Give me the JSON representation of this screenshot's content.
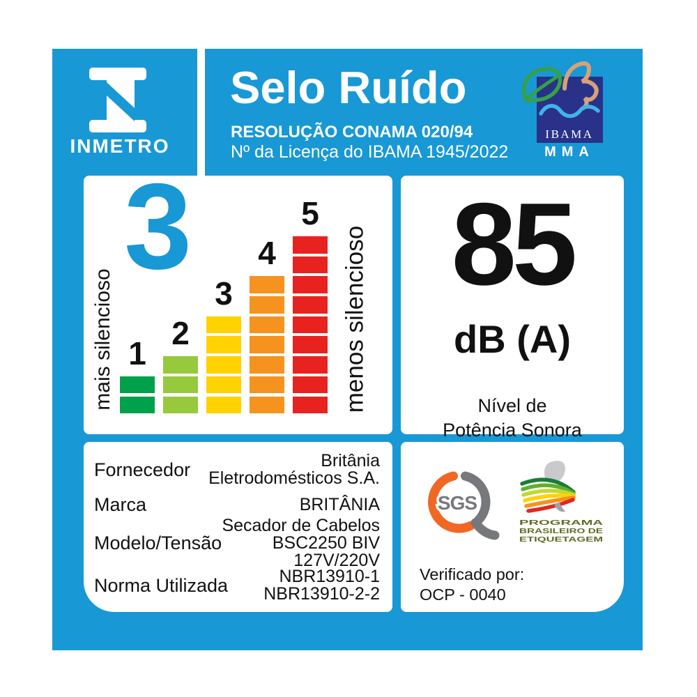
{
  "header": {
    "logo_word": "INMETRO",
    "title": "Selo Ruído",
    "subtitle_bold": "RESOLUÇÃO CONAMA 020/94",
    "subtitle": "Nº da Licença do IBAMA 1945/2022",
    "ibama_label": "IBAMA",
    "mma_label": "MMA"
  },
  "chart_data": {
    "type": "bar",
    "title": "Selo Ruído noise class scale",
    "categories": [
      "1",
      "2",
      "3",
      "4",
      "5"
    ],
    "values": [
      2,
      3,
      5,
      7,
      9
    ],
    "value_unit": "stacked segments per noise class",
    "selected_level": "3",
    "left_axis_label": "mais silencioso",
    "right_axis_label": "menos silencioso",
    "bar_colors": [
      "#00a14b",
      "#97c93d",
      "#ffd200",
      "#f6921e",
      "#e8231f"
    ],
    "legend_position": "none",
    "grid": false
  },
  "noise": {
    "value": "85",
    "unit": "dB (A)",
    "caption_lines": [
      "Nível de",
      "Potência Sonora"
    ]
  },
  "details": {
    "rows": [
      {
        "label": "Fornecedor",
        "value_lines": [
          "Britânia",
          "Eletrodomésticos S.A."
        ]
      },
      {
        "label": "Marca",
        "value_lines": [
          "BRITÂNIA"
        ]
      },
      {
        "label": "Modelo/Tensão",
        "value_lines": [
          "Secador de Cabelos",
          "BSC2250 BIV",
          "127V/220V"
        ]
      },
      {
        "label": "Norma Utilizada",
        "value_lines": [
          "NBR13910-1",
          "NBR13910-2-2"
        ]
      }
    ]
  },
  "verification": {
    "sgs_label": "SGS",
    "pbe_lines": [
      "PROGRAMA",
      "BRASILEIRO DE",
      "ETIQUETAGEM"
    ],
    "verified_label": "Verificado por:",
    "verified_value": "OCP - 0040"
  },
  "colors": {
    "blue": "#1898d5",
    "navy": "#293188",
    "leaf-green": "#35a048",
    "squiggle-tan": "#d6a278",
    "wave-blue": "#3fb4e8",
    "sgs-orange": "#f16724",
    "sgs-gray": "#77787b",
    "pbe-olive": "#5f6b25",
    "pbe-silver": "#c9cacc",
    "text-black": "#111111"
  }
}
